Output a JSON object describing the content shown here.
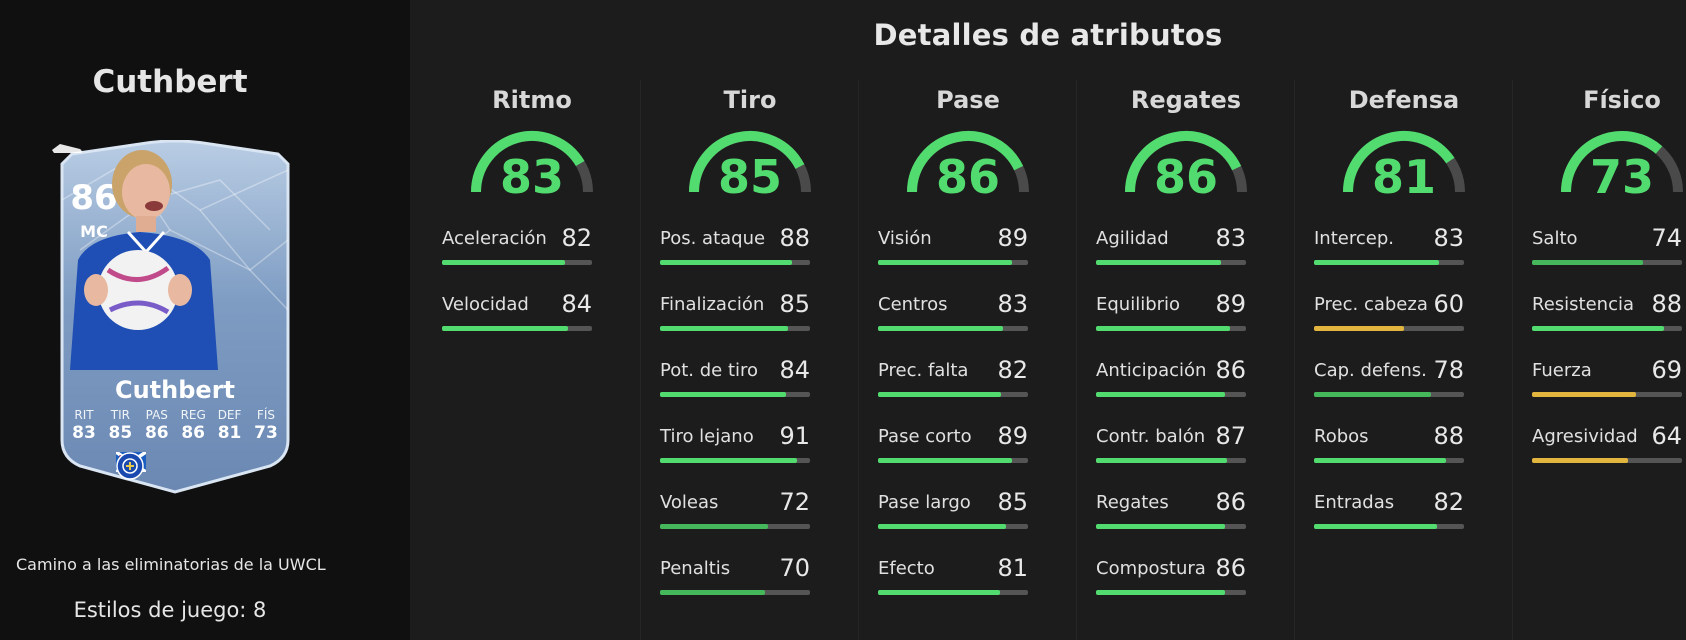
{
  "player": {
    "name": "Cuthbert",
    "card": {
      "rating": "86",
      "position": "MC",
      "name": "Cuthbert",
      "stats": [
        {
          "label": "RIT",
          "value": "83"
        },
        {
          "label": "TIR",
          "value": "85"
        },
        {
          "label": "PAS",
          "value": "86"
        },
        {
          "label": "REG",
          "value": "86"
        },
        {
          "label": "DEF",
          "value": "81"
        },
        {
          "label": "FÍS",
          "value": "73"
        }
      ]
    },
    "promo": "Camino a las eliminatorias de la UWCL",
    "playstyles": "Estilos de juego: 8"
  },
  "section_title": "Detalles de atributos",
  "colors": {
    "high": "#52dc6f",
    "mid": "#46b85c",
    "low": "#e2b53e",
    "track": "#555555"
  },
  "groups": [
    {
      "name": "Ritmo",
      "value": 83,
      "attributes": [
        {
          "name": "Aceleración",
          "value": 82
        },
        {
          "name": "Velocidad",
          "value": 84
        }
      ]
    },
    {
      "name": "Tiro",
      "value": 85,
      "attributes": [
        {
          "name": "Pos. ataque",
          "value": 88
        },
        {
          "name": "Finalización",
          "value": 85
        },
        {
          "name": "Pot. de tiro",
          "value": 84
        },
        {
          "name": "Tiro lejano",
          "value": 91
        },
        {
          "name": "Voleas",
          "value": 72
        },
        {
          "name": "Penaltis",
          "value": 70
        }
      ]
    },
    {
      "name": "Pase",
      "value": 86,
      "attributes": [
        {
          "name": "Visión",
          "value": 89
        },
        {
          "name": "Centros",
          "value": 83
        },
        {
          "name": "Prec. falta",
          "value": 82
        },
        {
          "name": "Pase corto",
          "value": 89
        },
        {
          "name": "Pase largo",
          "value": 85
        },
        {
          "name": "Efecto",
          "value": 81
        }
      ]
    },
    {
      "name": "Regates",
      "value": 86,
      "attributes": [
        {
          "name": "Agilidad",
          "value": 83
        },
        {
          "name": "Equilibrio",
          "value": 89
        },
        {
          "name": "Anticipación",
          "value": 86
        },
        {
          "name": "Contr. balón",
          "value": 87
        },
        {
          "name": "Regates",
          "value": 86
        },
        {
          "name": "Compostura",
          "value": 86
        }
      ]
    },
    {
      "name": "Defensa",
      "value": 81,
      "attributes": [
        {
          "name": "Intercep.",
          "value": 83
        },
        {
          "name": "Prec. cabeza",
          "value": 60
        },
        {
          "name": "Cap. defens.",
          "value": 78
        },
        {
          "name": "Robos",
          "value": 88
        },
        {
          "name": "Entradas",
          "value": 82
        }
      ]
    },
    {
      "name": "Físico",
      "value": 73,
      "attributes": [
        {
          "name": "Salto",
          "value": 74
        },
        {
          "name": "Resistencia",
          "value": 88
        },
        {
          "name": "Fuerza",
          "value": 69
        },
        {
          "name": "Agresividad",
          "value": 64
        }
      ]
    }
  ]
}
